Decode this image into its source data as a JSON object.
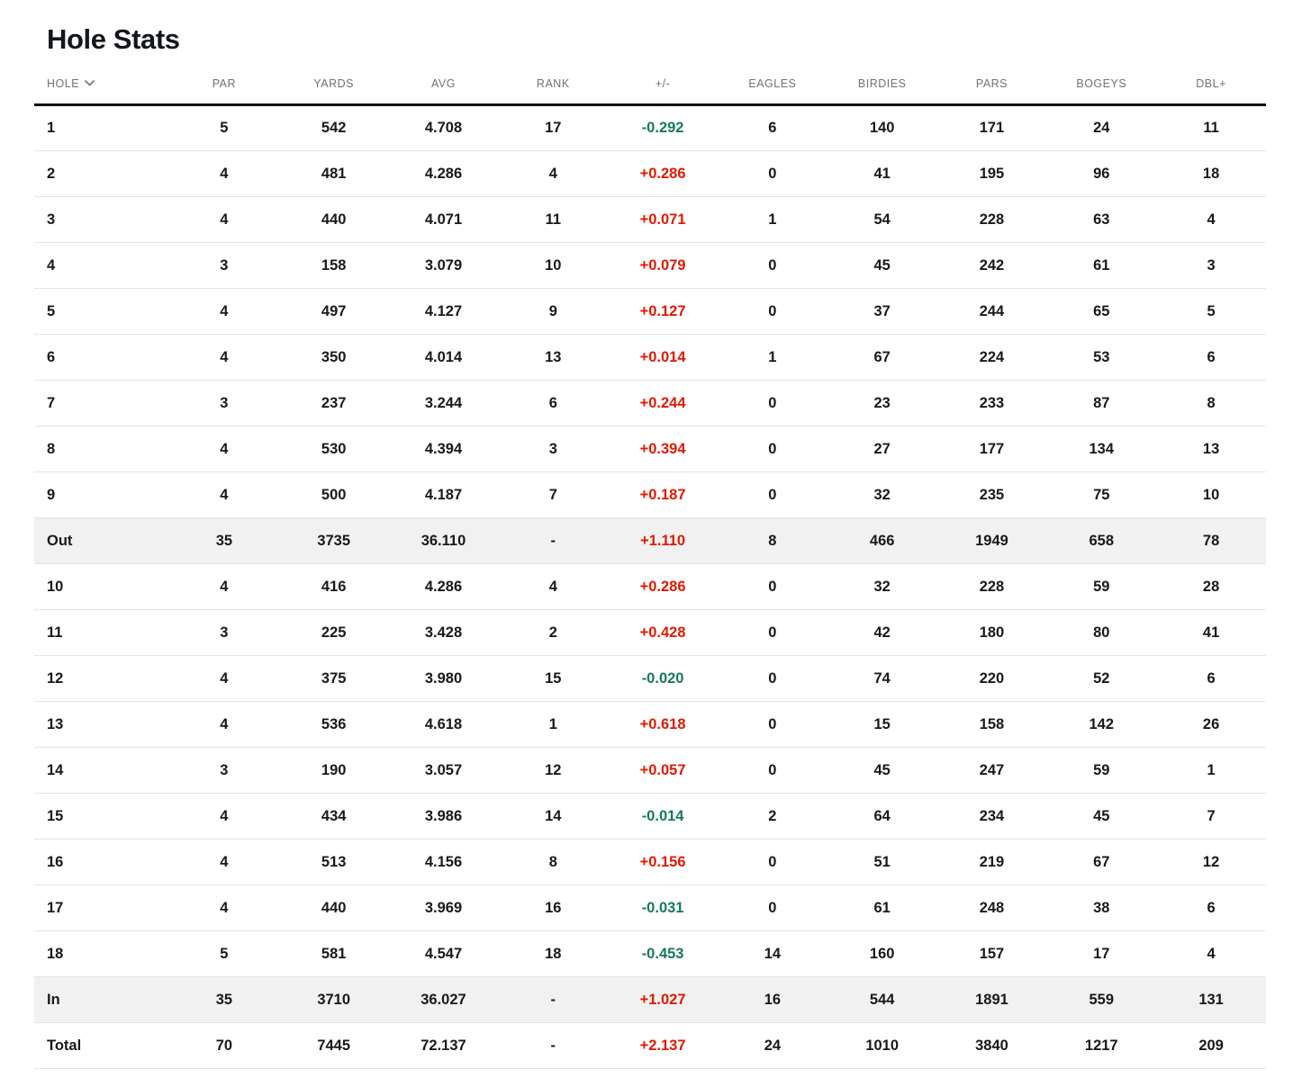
{
  "page": {
    "title": "Hole Stats"
  },
  "colors": {
    "over_par_red": "#e11900",
    "under_par_green": "#17795b",
    "data_text": "#17191d",
    "header_text": "#6e7177",
    "row_border": "#e4e4e5",
    "header_border": "#0e1013",
    "summary_row_bg": "#f1f1f1",
    "title_text": "#13161b"
  },
  "table": {
    "columns": [
      {
        "key": "hole",
        "label": "HOLE",
        "align": "left",
        "icon": "chevron-down"
      },
      {
        "key": "par",
        "label": "PAR"
      },
      {
        "key": "yards",
        "label": "YARDS"
      },
      {
        "key": "avg",
        "label": "AVG"
      },
      {
        "key": "rank",
        "label": "RANK"
      },
      {
        "key": "plusminus",
        "label": "+/-"
      },
      {
        "key": "eagles",
        "label": "EAGLES"
      },
      {
        "key": "birdies",
        "label": "BIRDIES"
      },
      {
        "key": "pars",
        "label": "PARS"
      },
      {
        "key": "bogeys",
        "label": "BOGEYS"
      },
      {
        "key": "dbl",
        "label": "DBL+"
      }
    ],
    "rows": [
      {
        "hole": "1",
        "par": "5",
        "yards": "542",
        "avg": "4.708",
        "rank": "17",
        "plusminus": "-0.292",
        "eagles": "6",
        "birdies": "140",
        "pars": "171",
        "bogeys": "24",
        "dbl": "11",
        "summary": false
      },
      {
        "hole": "2",
        "par": "4",
        "yards": "481",
        "avg": "4.286",
        "rank": "4",
        "plusminus": "+0.286",
        "eagles": "0",
        "birdies": "41",
        "pars": "195",
        "bogeys": "96",
        "dbl": "18",
        "summary": false
      },
      {
        "hole": "3",
        "par": "4",
        "yards": "440",
        "avg": "4.071",
        "rank": "11",
        "plusminus": "+0.071",
        "eagles": "1",
        "birdies": "54",
        "pars": "228",
        "bogeys": "63",
        "dbl": "4",
        "summary": false
      },
      {
        "hole": "4",
        "par": "3",
        "yards": "158",
        "avg": "3.079",
        "rank": "10",
        "plusminus": "+0.079",
        "eagles": "0",
        "birdies": "45",
        "pars": "242",
        "bogeys": "61",
        "dbl": "3",
        "summary": false
      },
      {
        "hole": "5",
        "par": "4",
        "yards": "497",
        "avg": "4.127",
        "rank": "9",
        "plusminus": "+0.127",
        "eagles": "0",
        "birdies": "37",
        "pars": "244",
        "bogeys": "65",
        "dbl": "5",
        "summary": false
      },
      {
        "hole": "6",
        "par": "4",
        "yards": "350",
        "avg": "4.014",
        "rank": "13",
        "plusminus": "+0.014",
        "eagles": "1",
        "birdies": "67",
        "pars": "224",
        "bogeys": "53",
        "dbl": "6",
        "summary": false
      },
      {
        "hole": "7",
        "par": "3",
        "yards": "237",
        "avg": "3.244",
        "rank": "6",
        "plusminus": "+0.244",
        "eagles": "0",
        "birdies": "23",
        "pars": "233",
        "bogeys": "87",
        "dbl": "8",
        "summary": false
      },
      {
        "hole": "8",
        "par": "4",
        "yards": "530",
        "avg": "4.394",
        "rank": "3",
        "plusminus": "+0.394",
        "eagles": "0",
        "birdies": "27",
        "pars": "177",
        "bogeys": "134",
        "dbl": "13",
        "summary": false
      },
      {
        "hole": "9",
        "par": "4",
        "yards": "500",
        "avg": "4.187",
        "rank": "7",
        "plusminus": "+0.187",
        "eagles": "0",
        "birdies": "32",
        "pars": "235",
        "bogeys": "75",
        "dbl": "10",
        "summary": false
      },
      {
        "hole": "Out",
        "par": "35",
        "yards": "3735",
        "avg": "36.110",
        "rank": "-",
        "plusminus": "+1.110",
        "eagles": "8",
        "birdies": "466",
        "pars": "1949",
        "bogeys": "658",
        "dbl": "78",
        "summary": true
      },
      {
        "hole": "10",
        "par": "4",
        "yards": "416",
        "avg": "4.286",
        "rank": "4",
        "plusminus": "+0.286",
        "eagles": "0",
        "birdies": "32",
        "pars": "228",
        "bogeys": "59",
        "dbl": "28",
        "summary": false
      },
      {
        "hole": "11",
        "par": "3",
        "yards": "225",
        "avg": "3.428",
        "rank": "2",
        "plusminus": "+0.428",
        "eagles": "0",
        "birdies": "42",
        "pars": "180",
        "bogeys": "80",
        "dbl": "41",
        "summary": false
      },
      {
        "hole": "12",
        "par": "4",
        "yards": "375",
        "avg": "3.980",
        "rank": "15",
        "plusminus": "-0.020",
        "eagles": "0",
        "birdies": "74",
        "pars": "220",
        "bogeys": "52",
        "dbl": "6",
        "summary": false
      },
      {
        "hole": "13",
        "par": "4",
        "yards": "536",
        "avg": "4.618",
        "rank": "1",
        "plusminus": "+0.618",
        "eagles": "0",
        "birdies": "15",
        "pars": "158",
        "bogeys": "142",
        "dbl": "26",
        "summary": false
      },
      {
        "hole": "14",
        "par": "3",
        "yards": "190",
        "avg": "3.057",
        "rank": "12",
        "plusminus": "+0.057",
        "eagles": "0",
        "birdies": "45",
        "pars": "247",
        "bogeys": "59",
        "dbl": "1",
        "summary": false
      },
      {
        "hole": "15",
        "par": "4",
        "yards": "434",
        "avg": "3.986",
        "rank": "14",
        "plusminus": "-0.014",
        "eagles": "2",
        "birdies": "64",
        "pars": "234",
        "bogeys": "45",
        "dbl": "7",
        "summary": false
      },
      {
        "hole": "16",
        "par": "4",
        "yards": "513",
        "avg": "4.156",
        "rank": "8",
        "plusminus": "+0.156",
        "eagles": "0",
        "birdies": "51",
        "pars": "219",
        "bogeys": "67",
        "dbl": "12",
        "summary": false
      },
      {
        "hole": "17",
        "par": "4",
        "yards": "440",
        "avg": "3.969",
        "rank": "16",
        "plusminus": "-0.031",
        "eagles": "0",
        "birdies": "61",
        "pars": "248",
        "bogeys": "38",
        "dbl": "6",
        "summary": false
      },
      {
        "hole": "18",
        "par": "5",
        "yards": "581",
        "avg": "4.547",
        "rank": "18",
        "plusminus": "-0.453",
        "eagles": "14",
        "birdies": "160",
        "pars": "157",
        "bogeys": "17",
        "dbl": "4",
        "summary": false
      },
      {
        "hole": "In",
        "par": "35",
        "yards": "3710",
        "avg": "36.027",
        "rank": "-",
        "plusminus": "+1.027",
        "eagles": "16",
        "birdies": "544",
        "pars": "1891",
        "bogeys": "559",
        "dbl": "131",
        "summary": true
      },
      {
        "hole": "Total",
        "par": "70",
        "yards": "7445",
        "avg": "72.137",
        "rank": "-",
        "plusminus": "+2.137",
        "eagles": "24",
        "birdies": "1010",
        "pars": "3840",
        "bogeys": "1217",
        "dbl": "209",
        "summary": false
      }
    ]
  }
}
